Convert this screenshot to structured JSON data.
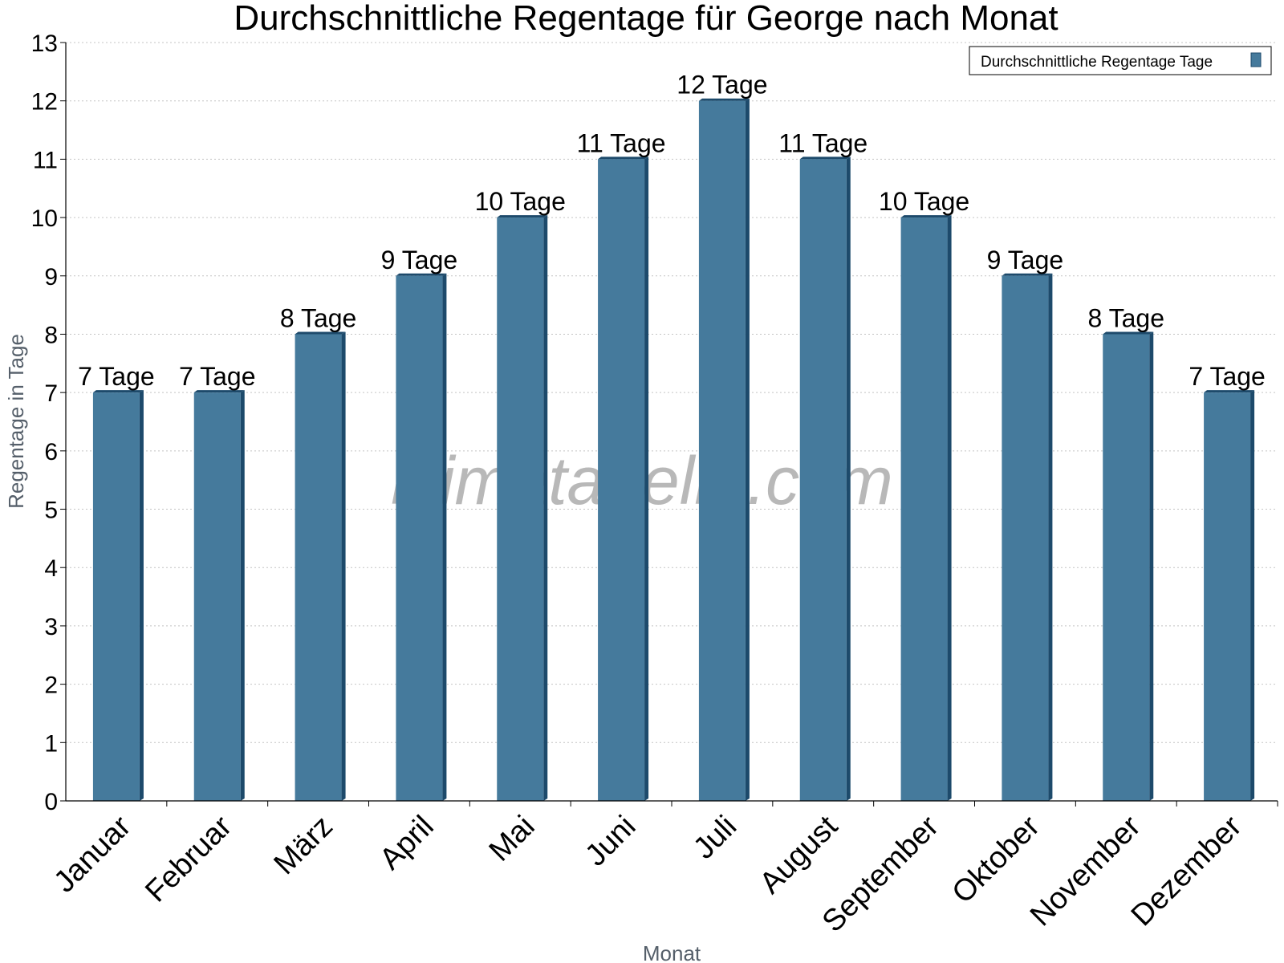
{
  "chart_data": {
    "type": "bar",
    "title": "Durchschnittliche Regentage für George nach Monat",
    "xlabel": "Monat",
    "ylabel": "Regentage in Tage",
    "ylim": [
      0,
      13
    ],
    "yticks": [
      0,
      1,
      2,
      3,
      4,
      5,
      6,
      7,
      8,
      9,
      10,
      11,
      12,
      13
    ],
    "grid": true,
    "legend_position": "top-right",
    "categories": [
      "Januar",
      "Februar",
      "März",
      "April",
      "Mai",
      "Juni",
      "Juli",
      "August",
      "September",
      "Oktober",
      "November",
      "Dezember"
    ],
    "series": [
      {
        "name": "Durchschnittliche Regentage Tage",
        "values": [
          7,
          7,
          8,
          9,
          10,
          11,
          12,
          11,
          10,
          9,
          8,
          7
        ],
        "labels": [
          "7 Tage",
          "7 Tage",
          "8 Tage",
          "9 Tage",
          "10 Tage",
          "11 Tage",
          "12 Tage",
          "11 Tage",
          "10 Tage",
          "9 Tage",
          "8 Tage",
          "7 Tage"
        ],
        "color": "#457a9c",
        "side_color": "#1d4a6b"
      }
    ]
  },
  "watermark": "klimatabelle.com"
}
